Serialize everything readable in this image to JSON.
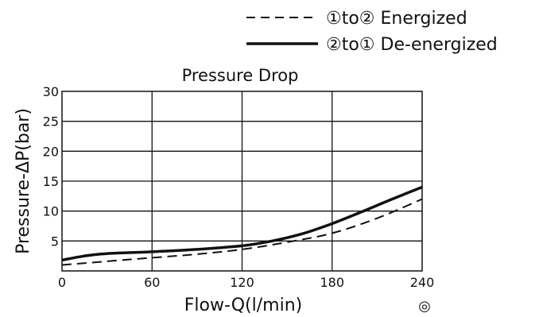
{
  "chart_data": {
    "type": "line",
    "title": "Pressure Drop",
    "xlabel": "Flow-Q(l/min)",
    "ylabel": "Pressure-ΔP(bar)",
    "xlim": [
      0,
      240
    ],
    "ylim": [
      0,
      30
    ],
    "x_ticks": [
      0,
      60,
      120,
      180,
      240
    ],
    "y_ticks": [
      5,
      10,
      15,
      20,
      25,
      30
    ],
    "grid": true,
    "legend_position": "top-right",
    "series": [
      {
        "name": "①to② Energized",
        "style": "dashed",
        "x": [
          0,
          30,
          60,
          90,
          120,
          150,
          180,
          210,
          240
        ],
        "y": [
          1.0,
          1.6,
          2.2,
          2.8,
          3.6,
          4.8,
          6.3,
          8.8,
          12.0
        ]
      },
      {
        "name": "②to① De-energized",
        "style": "solid",
        "x": [
          0,
          15,
          30,
          60,
          90,
          120,
          140,
          160,
          180,
          200,
          220,
          240
        ],
        "y": [
          1.8,
          2.5,
          2.9,
          3.2,
          3.6,
          4.2,
          5.0,
          6.2,
          7.9,
          9.9,
          12.0,
          14.0
        ]
      }
    ],
    "annotation": "◎"
  }
}
